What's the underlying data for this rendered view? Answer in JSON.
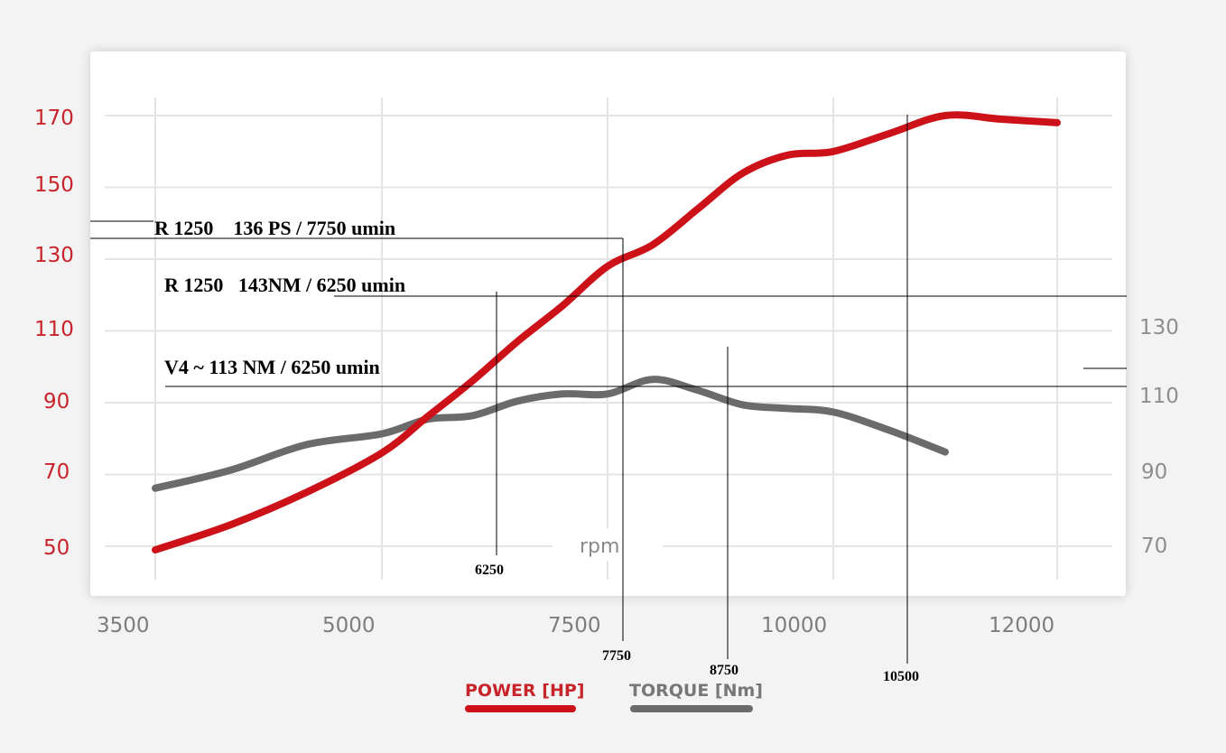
{
  "chart_data": {
    "type": "line",
    "title": "",
    "xlabel": "rpm",
    "x_ticks": [
      "3500",
      "5000",
      "7500",
      "10000",
      "12000"
    ],
    "y_left_ticks": [
      "170",
      "150",
      "130",
      "110",
      "90",
      "70",
      "50"
    ],
    "y_right_ticks": [
      "130",
      "110",
      "90",
      "70"
    ],
    "y_left_range": [
      50,
      170
    ],
    "y_right_range": [
      70,
      130
    ],
    "grid": true,
    "legend_position": "bottom",
    "colors": {
      "power": "#cc1118",
      "torque": "#6b6b6b",
      "left_axis": "#c8242b",
      "right_axis": "#8e8e8e"
    },
    "series": [
      {
        "name": "POWER [HP]",
        "axis": "left",
        "points": [
          [
            3500,
            49
          ],
          [
            4000,
            56
          ],
          [
            4500,
            65
          ],
          [
            5000,
            76
          ],
          [
            5500,
            86
          ],
          [
            6000,
            96
          ],
          [
            6500,
            107
          ],
          [
            7000,
            117
          ],
          [
            7500,
            128
          ],
          [
            8000,
            134
          ],
          [
            8500,
            144
          ],
          [
            9000,
            154
          ],
          [
            9500,
            159
          ],
          [
            10000,
            160
          ],
          [
            10500,
            165
          ],
          [
            11000,
            170
          ],
          [
            11500,
            169
          ],
          [
            12000,
            168
          ]
        ]
      },
      {
        "name": "TORQUE [Nm]",
        "axis": "right",
        "points": [
          [
            3500,
            86
          ],
          [
            4000,
            91
          ],
          [
            4500,
            98
          ],
          [
            5000,
            101
          ],
          [
            5500,
            105
          ],
          [
            6000,
            106
          ],
          [
            6500,
            110
          ],
          [
            7000,
            112
          ],
          [
            7500,
            112
          ],
          [
            8000,
            116
          ],
          [
            8500,
            113
          ],
          [
            9000,
            109
          ],
          [
            9500,
            108
          ],
          [
            10000,
            107
          ],
          [
            10500,
            102
          ],
          [
            11000,
            96
          ]
        ]
      }
    ],
    "annotations": [
      {
        "text": "R 1250    136 PS / 7750 umin"
      },
      {
        "text": "R 1250   143NM / 6250 umin"
      },
      {
        "text": "V4 ~ 113 NM / 6250 umin"
      }
    ],
    "marker_labels": [
      "6250",
      "7750",
      "8750",
      "10500"
    ]
  }
}
